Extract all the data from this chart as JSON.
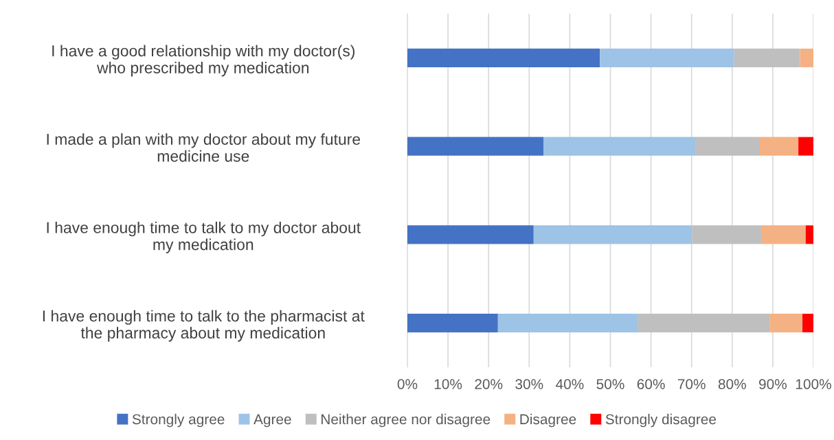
{
  "chart_data": {
    "type": "bar",
    "orientation": "horizontal",
    "stacked": true,
    "categories": [
      "I have a good relationship with my doctor(s) who prescribed my medication",
      "I made a plan with my doctor about my future medicine use",
      "I have enough time to talk to my doctor about my medication",
      "I have enough time to talk to the pharmacist at the pharmacy about my medication"
    ],
    "series": [
      {
        "name": "Strongly agree",
        "color": "#4472c4",
        "values": [
          47.4,
          33.5,
          31.1,
          22.3
        ]
      },
      {
        "name": "Agree",
        "color": "#9dc3e6",
        "values": [
          33.1,
          37.4,
          39.0,
          34.4
        ]
      },
      {
        "name": "Neither agree nor disagree",
        "color": "#bfbfbf",
        "values": [
          16.2,
          15.9,
          17.2,
          32.5
        ]
      },
      {
        "name": "Disagree",
        "color": "#f4b183",
        "values": [
          3.3,
          9.5,
          10.8,
          8.1
        ]
      },
      {
        "name": "Strongly disagree",
        "color": "#ff0000",
        "values": [
          0,
          3.7,
          1.9,
          2.7
        ]
      }
    ],
    "xlim": [
      0,
      100
    ],
    "xticks": [
      {
        "value": 0,
        "label": "0%"
      },
      {
        "value": 10,
        "label": "10%"
      },
      {
        "value": 20,
        "label": "20%"
      },
      {
        "value": 30,
        "label": "30%"
      },
      {
        "value": 40,
        "label": "40%"
      },
      {
        "value": 50,
        "label": "50%"
      },
      {
        "value": 60,
        "label": "60%"
      },
      {
        "value": 70,
        "label": "70%"
      },
      {
        "value": 80,
        "label": "80%"
      },
      {
        "value": 90,
        "label": "90%"
      },
      {
        "value": 100,
        "label": "100%"
      }
    ],
    "grid": "x",
    "legend": "bottom"
  }
}
